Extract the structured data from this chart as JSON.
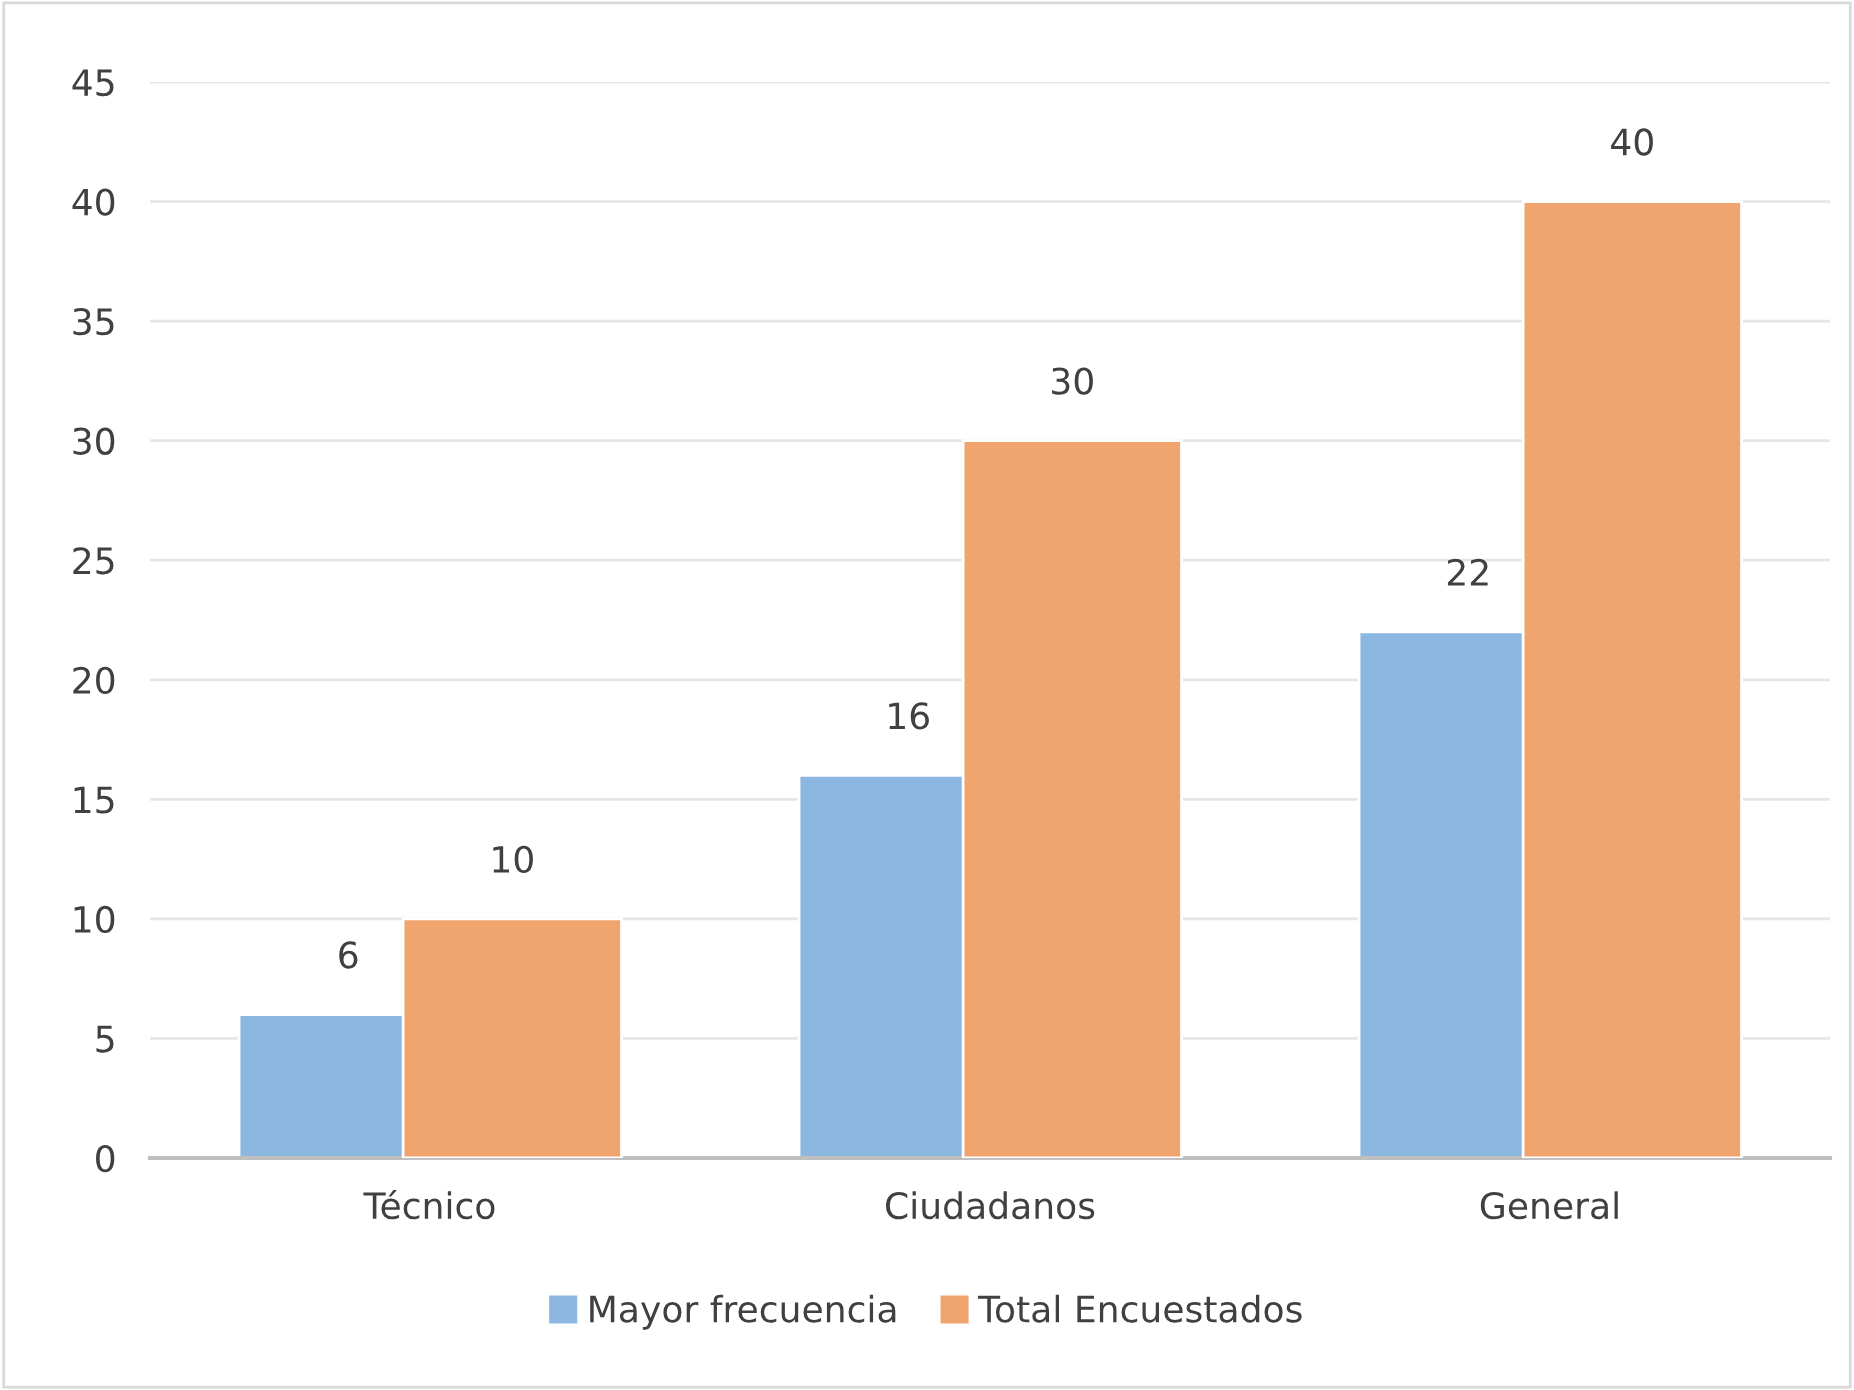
{
  "chart_data": {
    "type": "bar",
    "categories": [
      "Técnico",
      "Ciudadanos",
      "General"
    ],
    "series": [
      {
        "name": "Mayor frecuencia",
        "color": "#8cb7e1",
        "values": [
          6,
          16,
          22
        ]
      },
      {
        "name": "Total Encuestados",
        "color": "#f0a46e",
        "values": [
          10,
          30,
          40
        ]
      }
    ],
    "ylim": [
      0,
      45
    ],
    "yticks": [
      0,
      5,
      10,
      15,
      20,
      25,
      30,
      35,
      40,
      45
    ],
    "grid": "y",
    "legend": "bottom",
    "data_labels": true
  }
}
